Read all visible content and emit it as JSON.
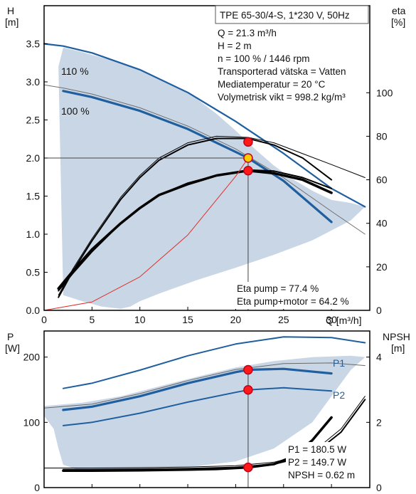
{
  "chart_data": [
    {
      "type": "line",
      "title": "TPE 65-30/4-S, 1*230 V, 50Hz",
      "xlabel": "Q [m³/h]",
      "ylabel": "H",
      "ylabel_unit": "[m]",
      "y2label": "eta",
      "y2label_unit": "[%]",
      "xlim": [
        0,
        34
      ],
      "ylim": [
        0,
        4.0
      ],
      "y2lim": [
        0,
        140
      ],
      "xticks": [
        "0",
        "5",
        "10",
        "15",
        "20",
        "25",
        "30"
      ],
      "yticks": [
        "0.0",
        "0.5",
        "1.0",
        "1.5",
        "2.0",
        "2.5",
        "3.0",
        "3.5"
      ],
      "y2ticks": [
        "0",
        "20",
        "40",
        "60",
        "80",
        "100"
      ],
      "grid": false,
      "info_lines": [
        "Q = 21.3 m³/h",
        "H = 2 m",
        "n = 100 % / 1446 rpm",
        "Transporterad vätska = Vatten",
        "Mediatemperatur = 20 °C",
        "Volymetrisk vikt = 998.2 kg/m³"
      ],
      "result_lines": [
        "Eta pump = 77.4 %",
        "Eta pump+motor = 64.2 %"
      ],
      "curve_labels": [
        "110 %",
        "100 %"
      ],
      "operating_area": {
        "x": [
          1.5,
          2,
          4,
          6,
          8,
          10,
          12,
          14,
          16,
          18,
          20,
          22,
          24,
          26,
          28,
          30,
          32,
          33.5,
          32,
          28,
          24,
          20,
          16,
          12,
          10,
          9,
          8,
          6,
          4,
          3,
          2,
          1.5
        ],
        "y": [
          3.2,
          3.45,
          3.39,
          3.32,
          3.25,
          3.15,
          3.05,
          2.92,
          2.77,
          2.58,
          2.36,
          2.12,
          1.9,
          1.72,
          1.57,
          1.45,
          1.41,
          1.36,
          1.18,
          0.92,
          0.73,
          0.56,
          0.4,
          0.22,
          0.12,
          0.05,
          0.02,
          0.05,
          0.12,
          0.16,
          0.2,
          3.2
        ]
      },
      "series": [
        {
          "role": "head",
          "label": "110 %",
          "color": "#1f5f9f",
          "width": 2.2,
          "x": [
            0,
            2,
            5,
            10,
            15,
            20,
            25,
            30,
            33.5
          ],
          "y": [
            3.5,
            3.47,
            3.38,
            3.16,
            2.86,
            2.48,
            2.06,
            1.6,
            1.36
          ]
        },
        {
          "role": "head",
          "label": "100 %",
          "color": "#1f5f9f",
          "width": 3.2,
          "x": [
            2,
            5,
            10,
            15,
            20,
            21.3,
            25,
            30
          ],
          "y": [
            2.88,
            2.8,
            2.62,
            2.38,
            2.08,
            2.0,
            1.7,
            1.16
          ]
        },
        {
          "role": "head",
          "label": "",
          "color": "#707070",
          "width": 1,
          "x": [
            0,
            2,
            5,
            10,
            15,
            20,
            25,
            30,
            33.5
          ],
          "y": [
            2.96,
            2.92,
            2.84,
            2.66,
            2.42,
            2.12,
            1.74,
            1.3,
            1.0
          ]
        },
        {
          "role": "eta",
          "label": "",
          "color": "#000000",
          "width": 2,
          "x": [
            1.5,
            3,
            5,
            8,
            10,
            12,
            15,
            18,
            21.3,
            24,
            27,
            30
          ],
          "y": [
            6,
            18,
            32,
            51,
            61,
            69,
            76,
            79,
            79,
            76,
            70,
            60
          ]
        },
        {
          "role": "eta",
          "label": "",
          "color": "#000000",
          "width": 1,
          "x": [
            1.5,
            3,
            5,
            8,
            10,
            12,
            15,
            18,
            21.3,
            24,
            27,
            30,
            33.5
          ],
          "y": [
            7,
            19,
            33,
            52,
            62,
            70,
            77,
            80,
            79.5,
            77,
            72,
            67,
            61
          ]
        },
        {
          "role": "eta",
          "label": "",
          "color": "#000000",
          "width": 3.5,
          "x": [
            1.5,
            3,
            5,
            8,
            10,
            12,
            15,
            18,
            21.3,
            24,
            27,
            30
          ],
          "y": [
            10,
            18,
            28,
            40,
            47,
            53,
            58,
            62,
            64.2,
            63,
            60,
            54
          ]
        },
        {
          "role": "eta",
          "label": "",
          "color": "#000000",
          "width": 2,
          "x": [
            1.5,
            3,
            5,
            8,
            10,
            12,
            15,
            18,
            21.3,
            24,
            27,
            30
          ],
          "y": [
            9,
            17,
            27,
            40,
            47,
            53,
            58.5,
            62,
            64.5,
            64,
            61,
            56
          ]
        },
        {
          "role": "system",
          "label": "",
          "color": "#e0302a",
          "width": 1,
          "x": [
            0,
            5,
            10,
            15,
            20,
            21.3
          ],
          "y": [
            0,
            0.11,
            0.44,
            0.99,
            1.76,
            2.0
          ]
        }
      ],
      "points": [
        {
          "x": 21.3,
          "y": 2.0,
          "axis": "H",
          "color": "#ffcc00"
        },
        {
          "x": 21.3,
          "y": 77.4,
          "axis": "eta",
          "color": "#ff1a1a"
        },
        {
          "x": 21.3,
          "y": 64.2,
          "axis": "eta",
          "color": "#ff1a1a"
        }
      ]
    },
    {
      "type": "line",
      "xlabel": "",
      "ylabel": "P",
      "ylabel_unit": "[W]",
      "y2label": "NPSH",
      "y2label_unit": "[m]",
      "xlim": [
        0,
        34
      ],
      "ylim": [
        0,
        240
      ],
      "y2lim": [
        0,
        4.8
      ],
      "yticks": [
        "0",
        "100",
        "200"
      ],
      "y2ticks": [
        "0",
        "2",
        "4"
      ],
      "grid": false,
      "result_lines": [
        "P1 = 180.5 W",
        "P2 = 149.7 W",
        "NPSH = 0.62 m"
      ],
      "series_labels": [
        "P1",
        "P2"
      ],
      "operating_area": {
        "x": [
          0,
          4,
          8,
          12,
          16,
          20,
          24,
          28,
          32,
          33.5,
          32,
          28,
          24,
          20,
          16,
          12,
          8,
          4,
          2,
          1.5,
          1,
          0
        ],
        "y": [
          125,
          130,
          140,
          155,
          170,
          184,
          194,
          200,
          202,
          200,
          180,
          100,
          60,
          40,
          33,
          30,
          28,
          25,
          35,
          60,
          90,
          110
        ]
      },
      "series": [
        {
          "role": "power",
          "label": "P1",
          "color": "#1f5f9f",
          "width": 2,
          "x": [
            2,
            5,
            10,
            15,
            20,
            25,
            30,
            33.5
          ],
          "y": [
            152,
            160,
            180,
            202,
            220,
            231,
            230,
            222
          ]
        },
        {
          "role": "power",
          "label": "",
          "color": "#1f5f9f",
          "width": 3.2,
          "x": [
            2,
            5,
            10,
            15,
            20,
            21.3,
            25,
            30
          ],
          "y": [
            119,
            124,
            140,
            160,
            177,
            180.5,
            182,
            175
          ]
        },
        {
          "role": "power",
          "label": "",
          "color": "#1f5f9f",
          "width": 2,
          "x": [
            2,
            5,
            10,
            15,
            20,
            21.3,
            25,
            30
          ],
          "y": [
            95,
            100,
            114,
            131,
            146,
            149.7,
            153,
            148
          ]
        },
        {
          "role": "power",
          "label": "",
          "color": "#6a6a6a",
          "width": 1,
          "x": [
            0,
            5,
            10,
            15,
            20,
            25,
            30,
            33.5
          ],
          "y": [
            122,
            128,
            144,
            164,
            181,
            190,
            191,
            187
          ]
        },
        {
          "role": "npsh",
          "label": "",
          "color": "#000000",
          "width": 3.5,
          "x": [
            2,
            5,
            10,
            15,
            18,
            21.3,
            24,
            26,
            28,
            30
          ],
          "y": [
            0.52,
            0.52,
            0.53,
            0.55,
            0.57,
            0.62,
            0.72,
            0.95,
            1.45,
            2.15
          ]
        },
        {
          "role": "npsh",
          "label": "",
          "color": "#000000",
          "width": 2,
          "x": [
            2,
            5,
            10,
            15,
            20,
            24,
            28,
            31,
            33.5
          ],
          "y": [
            0.55,
            0.55,
            0.56,
            0.58,
            0.62,
            0.72,
            1.0,
            1.7,
            2.7
          ]
        },
        {
          "role": "npsh",
          "label": "",
          "color": "#000000",
          "width": 1,
          "x": [
            0,
            5,
            10,
            15,
            20,
            24,
            28,
            31,
            33.5
          ],
          "y": [
            0.6,
            0.6,
            0.61,
            0.63,
            0.67,
            0.78,
            1.08,
            1.8,
            2.8
          ]
        }
      ],
      "points": [
        {
          "x": 21.3,
          "y": 180.5,
          "axis": "P",
          "color": "#ff1a1a"
        },
        {
          "x": 21.3,
          "y": 149.7,
          "axis": "P",
          "color": "#ff1a1a"
        },
        {
          "x": 21.3,
          "y": 0.62,
          "axis": "NPSH",
          "color": "#ff1a1a"
        }
      ]
    }
  ]
}
